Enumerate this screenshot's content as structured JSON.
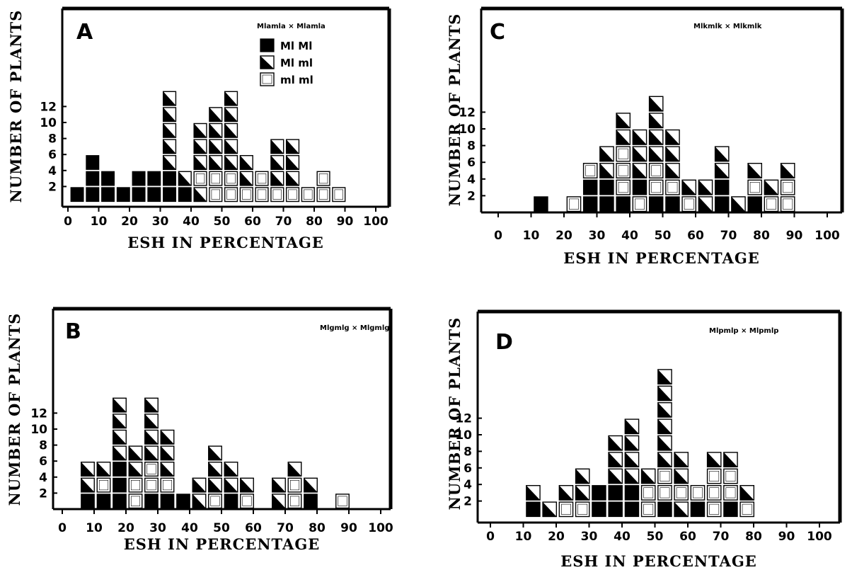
{
  "chart_data": [
    {
      "type": "bar",
      "panel_label": "A",
      "cross": "Mlamla × Mlamla",
      "xlabel": "ESH IN PERCENTAGE",
      "ylabel": "NUMBER OF PLANTS",
      "xlim": [
        0,
        100
      ],
      "ylim": [
        0,
        12
      ],
      "xticks": [
        "0",
        "10",
        "20",
        "30",
        "40",
        "50",
        "60",
        "70",
        "80",
        "90",
        "100"
      ],
      "yticks": [
        "2",
        "4",
        "6",
        "8",
        "10",
        "12"
      ],
      "legend": [
        {
          "label": "Ml Ml",
          "kind": "filled"
        },
        {
          "label": "Ml ml",
          "kind": "half"
        },
        {
          "label": "ml ml",
          "kind": "empty"
        }
      ],
      "columns": [
        {
          "x": 3,
          "stack": [
            "F"
          ]
        },
        {
          "x": 8,
          "stack": [
            "F",
            "F",
            "F"
          ]
        },
        {
          "x": 13,
          "stack": [
            "F",
            "F"
          ]
        },
        {
          "x": 18,
          "stack": [
            "F"
          ]
        },
        {
          "x": 23,
          "stack": [
            "F",
            "F"
          ]
        },
        {
          "x": 28,
          "stack": [
            "F",
            "F"
          ]
        },
        {
          "x": 33,
          "stack": [
            "F",
            "F",
            "H",
            "H",
            "H",
            "H",
            "H"
          ]
        },
        {
          "x": 38,
          "stack": [
            "F",
            "H"
          ]
        },
        {
          "x": 43,
          "stack": [
            "H",
            "E",
            "H",
            "H",
            "H"
          ]
        },
        {
          "x": 48,
          "stack": [
            "E",
            "E",
            "H",
            "H",
            "H",
            "H"
          ]
        },
        {
          "x": 53,
          "stack": [
            "E",
            "E",
            "H",
            "H",
            "H",
            "H",
            "H"
          ]
        },
        {
          "x": 58,
          "stack": [
            "E",
            "H",
            "H"
          ]
        },
        {
          "x": 63,
          "stack": [
            "E",
            "E"
          ]
        },
        {
          "x": 68,
          "stack": [
            "E",
            "H",
            "H",
            "H"
          ]
        },
        {
          "x": 73,
          "stack": [
            "E",
            "H",
            "H",
            "H"
          ]
        },
        {
          "x": 78,
          "stack": [
            "E"
          ]
        },
        {
          "x": 83,
          "stack": [
            "E",
            "E"
          ]
        },
        {
          "x": 88,
          "stack": [
            "E"
          ]
        }
      ]
    },
    {
      "type": "bar",
      "panel_label": "B",
      "cross": "Mlgmlg × Mlgmlg",
      "xlabel": "ESH IN PERCENTAGE",
      "ylabel": "NUMBER OF PLANTS",
      "xlim": [
        0,
        100
      ],
      "ylim": [
        0,
        12
      ],
      "xticks": [
        "0",
        "10",
        "20",
        "30",
        "40",
        "50",
        "60",
        "70",
        "80",
        "90",
        "100"
      ],
      "yticks": [
        "2",
        "4",
        "6",
        "8",
        "10",
        "12"
      ],
      "columns": [
        {
          "x": 8,
          "stack": [
            "F",
            "H",
            "H"
          ]
        },
        {
          "x": 13,
          "stack": [
            "F",
            "E",
            "H"
          ]
        },
        {
          "x": 18,
          "stack": [
            "F",
            "F",
            "F",
            "H",
            "H",
            "H",
            "H"
          ]
        },
        {
          "x": 23,
          "stack": [
            "E",
            "E",
            "H",
            "H"
          ]
        },
        {
          "x": 28,
          "stack": [
            "F",
            "E",
            "E",
            "H",
            "H",
            "H",
            "H"
          ]
        },
        {
          "x": 33,
          "stack": [
            "F",
            "E",
            "H",
            "H",
            "H"
          ]
        },
        {
          "x": 38,
          "stack": [
            "F"
          ]
        },
        {
          "x": 43,
          "stack": [
            "H",
            "H"
          ]
        },
        {
          "x": 48,
          "stack": [
            "E",
            "H",
            "H",
            "H"
          ]
        },
        {
          "x": 53,
          "stack": [
            "F",
            "H",
            "H"
          ]
        },
        {
          "x": 58,
          "stack": [
            "E",
            "H"
          ]
        },
        {
          "x": 68,
          "stack": [
            "H",
            "H"
          ]
        },
        {
          "x": 73,
          "stack": [
            "E",
            "E",
            "H"
          ]
        },
        {
          "x": 78,
          "stack": [
            "F",
            "H"
          ]
        },
        {
          "x": 88,
          "stack": [
            "E"
          ]
        }
      ]
    },
    {
      "type": "bar",
      "panel_label": "C",
      "cross": "Mlkmlk × Mlkmlk",
      "xlabel": "ESH IN PERCENTAGE",
      "ylabel": "NUMBER OF PLANTS",
      "xlim": [
        0,
        100
      ],
      "ylim": [
        0,
        12
      ],
      "xticks": [
        "0",
        "10",
        "20",
        "30",
        "40",
        "50",
        "60",
        "70",
        "80",
        "90",
        "100"
      ],
      "yticks": [
        "2",
        "4",
        "6",
        "8",
        "10",
        "12"
      ],
      "columns": [
        {
          "x": 13,
          "stack": [
            "F"
          ]
        },
        {
          "x": 23,
          "stack": [
            "E"
          ]
        },
        {
          "x": 28,
          "stack": [
            "F",
            "F",
            "E"
          ]
        },
        {
          "x": 33,
          "stack": [
            "F",
            "F",
            "H",
            "H"
          ]
        },
        {
          "x": 38,
          "stack": [
            "F",
            "E",
            "E",
            "E",
            "H",
            "H"
          ]
        },
        {
          "x": 43,
          "stack": [
            "E",
            "F",
            "H",
            "H",
            "H"
          ]
        },
        {
          "x": 48,
          "stack": [
            "F",
            "E",
            "E",
            "H",
            "H",
            "H",
            "H"
          ]
        },
        {
          "x": 53,
          "stack": [
            "F",
            "E",
            "H",
            "H",
            "H"
          ]
        },
        {
          "x": 58,
          "stack": [
            "E",
            "H"
          ]
        },
        {
          "x": 63,
          "stack": [
            "H",
            "H"
          ]
        },
        {
          "x": 68,
          "stack": [
            "F",
            "F",
            "H",
            "H"
          ]
        },
        {
          "x": 73,
          "stack": [
            "H"
          ]
        },
        {
          "x": 78,
          "stack": [
            "F",
            "E",
            "H"
          ]
        },
        {
          "x": 83,
          "stack": [
            "E",
            "H"
          ]
        },
        {
          "x": 88,
          "stack": [
            "E",
            "E",
            "H"
          ]
        }
      ]
    },
    {
      "type": "bar",
      "panel_label": "D",
      "cross": "Mlpmlp × Mlpmlp",
      "xlabel": "ESH IN PERCENTAGE",
      "ylabel": "NUMBER OF PLANTS",
      "xlim": [
        0,
        100
      ],
      "ylim": [
        0,
        12
      ],
      "xticks": [
        "0",
        "10",
        "20",
        "30",
        "40",
        "50",
        "60",
        "70",
        "80",
        "90",
        "100"
      ],
      "yticks": [
        "2",
        "4",
        "6",
        "8",
        "10",
        "12"
      ],
      "columns": [
        {
          "x": 13,
          "stack": [
            "F",
            "H"
          ]
        },
        {
          "x": 18,
          "stack": [
            "H"
          ]
        },
        {
          "x": 23,
          "stack": [
            "E",
            "H"
          ]
        },
        {
          "x": 28,
          "stack": [
            "E",
            "H",
            "H"
          ]
        },
        {
          "x": 33,
          "stack": [
            "F",
            "F"
          ]
        },
        {
          "x": 38,
          "stack": [
            "F",
            "F",
            "H",
            "H",
            "H"
          ]
        },
        {
          "x": 43,
          "stack": [
            "F",
            "F",
            "H",
            "H",
            "H",
            "H"
          ]
        },
        {
          "x": 48,
          "stack": [
            "E",
            "E",
            "H"
          ]
        },
        {
          "x": 53,
          "stack": [
            "F",
            "E",
            "E",
            "H",
            "H",
            "H",
            "H",
            "H",
            "H"
          ]
        },
        {
          "x": 58,
          "stack": [
            "H",
            "E",
            "H",
            "H"
          ]
        },
        {
          "x": 63,
          "stack": [
            "F",
            "E"
          ]
        },
        {
          "x": 68,
          "stack": [
            "E",
            "E",
            "E",
            "H"
          ]
        },
        {
          "x": 73,
          "stack": [
            "F",
            "E",
            "E",
            "H"
          ]
        },
        {
          "x": 78,
          "stack": [
            "E",
            "H"
          ]
        }
      ]
    }
  ]
}
